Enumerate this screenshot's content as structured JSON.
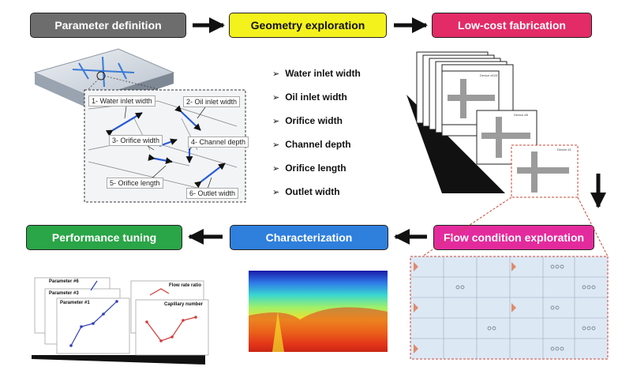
{
  "steps": {
    "param": "Parameter definition",
    "geometry": "Geometry exploration",
    "fabrication": "Low-cost fabrication",
    "flow": "Flow condition exploration",
    "characterization": "Characterization",
    "performance": "Performance tuning"
  },
  "parameters_list": [
    "Water inlet width",
    "Oil inlet width",
    "Orifice width",
    "Channel depth",
    "Orifice length",
    "Outlet width"
  ],
  "callouts": {
    "c1": "1- Water inlet width",
    "c2": "2- Oil inlet width",
    "c3": "3- Orifice width",
    "c4": "4- Channel depth",
    "c5": "5- Orifice length",
    "c6": "6- Outlet width"
  },
  "devices": {
    "d1": "Device #1",
    "d8": "Device #8",
    "d103": "Device #103"
  },
  "plots": {
    "p96": "Parameter #6",
    "p3": "Parameter #3",
    "p1": "Parameter #1",
    "flowrate": "Flow rate ratio",
    "capillary": "Capillary number"
  },
  "colors": {
    "arrow": "#111111",
    "blue": "#2a5bd7",
    "line_blue": "#2f3fb8",
    "line_red": "#d23a3a"
  }
}
